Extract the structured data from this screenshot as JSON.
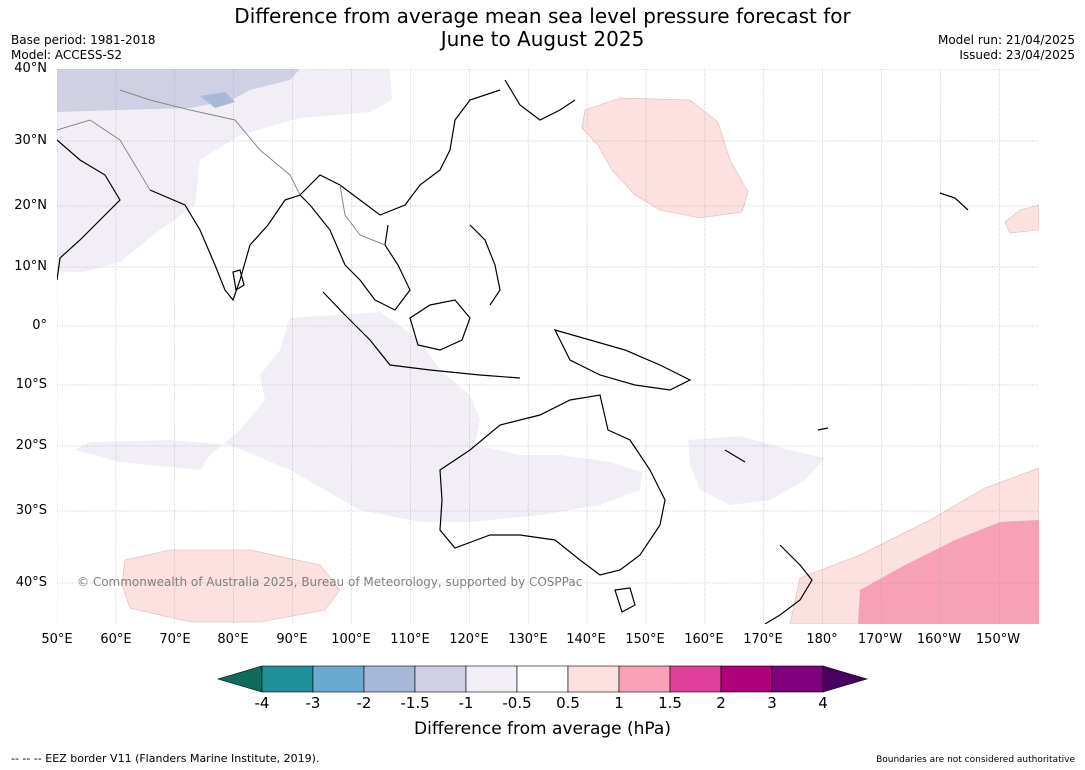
{
  "title_line1": "Difference from average mean sea level pressure forecast for",
  "title_line2": "June to August 2025",
  "meta_left": [
    "Base period: 1981-2018",
    "Model: ACCESS-S2"
  ],
  "meta_right": [
    "Model run: 21/04/2025",
    "Issued: 23/04/2025"
  ],
  "lat_labels": [
    "40°N",
    "30°N",
    "20°N",
    "10°N",
    "0°",
    "10°S",
    "20°S",
    "30°S",
    "40°S"
  ],
  "lon_labels": [
    "50°E",
    "60°E",
    "70°E",
    "80°E",
    "90°E",
    "100°E",
    "110°E",
    "120°E",
    "130°E",
    "140°E",
    "150°E",
    "160°E",
    "170°E",
    "180°",
    "170°W",
    "160°W",
    "150°W"
  ],
  "copyright": "© Commonwealth of Australia 2025, Bureau of Meteorology, supported by COSPPac",
  "colorbar": {
    "ticks": [
      "-4",
      "-3",
      "-2",
      "-1.5",
      "-1",
      "-0.5",
      "0.5",
      "1",
      "1.5",
      "2",
      "3",
      "4"
    ],
    "colors": [
      "#0e6b5e",
      "#1e9099",
      "#6aaad0",
      "#a8b8d8",
      "#d0d0e4",
      "#f2eef6",
      "#ffffff",
      "#fde0e0",
      "#f7a0b8",
      "#e0409a",
      "#b0007a",
      "#800080",
      "#4a0060"
    ],
    "label": "Difference from average (hPa)"
  },
  "footer_left": "--  --  -- EEZ border V11 (Flanders Marine Institute, 2019).",
  "footer_right": "Boundaries are not considered authoritative"
}
